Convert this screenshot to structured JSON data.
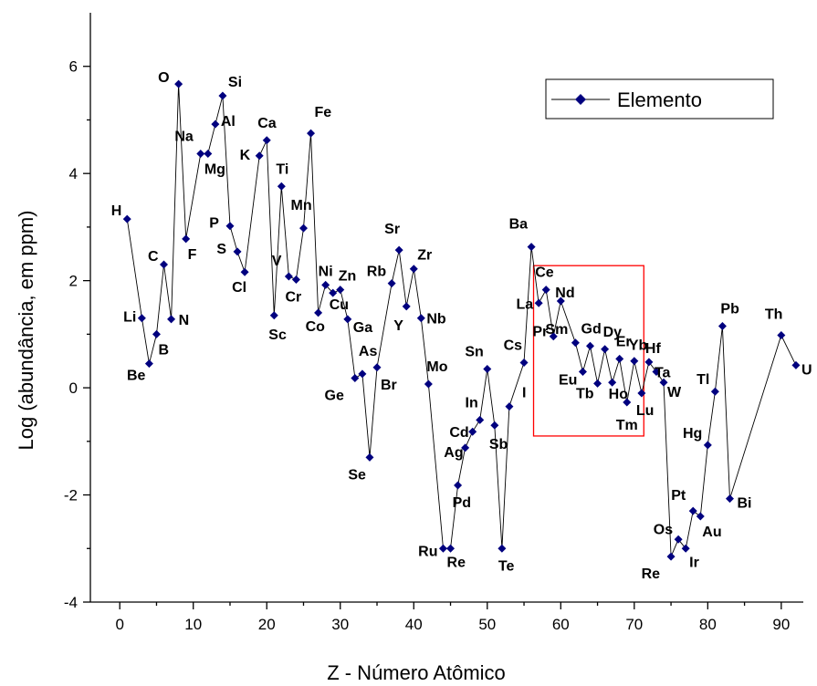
{
  "chart_data": {
    "type": "line",
    "xlabel": "Z - Número Atômico",
    "ylabel": "Log (abundância, em ppm)",
    "xlim": [
      -4,
      93
    ],
    "ylim": [
      -4,
      7
    ],
    "xticks": [
      0,
      10,
      20,
      30,
      40,
      50,
      60,
      70,
      80,
      90
    ],
    "yticks": [
      -4,
      -2,
      0,
      2,
      4,
      6
    ],
    "grid": false,
    "legend_position": "top-right",
    "colors": {
      "series": "#00007f",
      "highlight_box": "#ff0000"
    },
    "highlight_region": {
      "x": [
        56.3,
        71.3
      ],
      "y": [
        -0.9,
        2.28
      ]
    },
    "series": [
      {
        "name": "Elemento",
        "points": [
          {
            "z": 1,
            "y": 3.15,
            "label": "H"
          },
          {
            "z": 3,
            "y": 1.3,
            "label": "Li"
          },
          {
            "z": 4,
            "y": 0.45,
            "label": "Be"
          },
          {
            "z": 5,
            "y": 1.0,
            "label": "B"
          },
          {
            "z": 6,
            "y": 2.3,
            "label": "C"
          },
          {
            "z": 7,
            "y": 1.28,
            "label": "N"
          },
          {
            "z": 8,
            "y": 5.67,
            "label": "O"
          },
          {
            "z": 9,
            "y": 2.78,
            "label": "F"
          },
          {
            "z": 11,
            "y": 4.37,
            "label": "Na"
          },
          {
            "z": 12,
            "y": 4.37,
            "label": "Mg"
          },
          {
            "z": 13,
            "y": 4.92,
            "label": "Al"
          },
          {
            "z": 14,
            "y": 5.45,
            "label": "Si"
          },
          {
            "z": 15,
            "y": 3.02,
            "label": "P"
          },
          {
            "z": 16,
            "y": 2.54,
            "label": "S"
          },
          {
            "z": 17,
            "y": 2.16,
            "label": "Cl"
          },
          {
            "z": 19,
            "y": 4.33,
            "label": "K"
          },
          {
            "z": 20,
            "y": 4.62,
            "label": "Ca"
          },
          {
            "z": 21,
            "y": 1.35,
            "label": "Sc"
          },
          {
            "z": 22,
            "y": 3.76,
            "label": "Ti"
          },
          {
            "z": 23,
            "y": 2.08,
            "label": "V"
          },
          {
            "z": 24,
            "y": 2.02,
            "label": "Cr"
          },
          {
            "z": 25,
            "y": 2.98,
            "label": "Mn"
          },
          {
            "z": 26,
            "y": 4.75,
            "label": "Fe"
          },
          {
            "z": 27,
            "y": 1.4,
            "label": "Co"
          },
          {
            "z": 28,
            "y": 1.92,
            "label": "Ni"
          },
          {
            "z": 29,
            "y": 1.77,
            "label": "Cu"
          },
          {
            "z": 30,
            "y": 1.83,
            "label": "Zn"
          },
          {
            "z": 31,
            "y": 1.28,
            "label": "Ga"
          },
          {
            "z": 32,
            "y": 0.18,
            "label": "Ge"
          },
          {
            "z": 33,
            "y": 0.26,
            "label": "As"
          },
          {
            "z": 34,
            "y": -1.3,
            "label": "Se"
          },
          {
            "z": 35,
            "y": 0.38,
            "label": "Br"
          },
          {
            "z": 37,
            "y": 1.95,
            "label": "Rb"
          },
          {
            "z": 38,
            "y": 2.57,
            "label": "Sr"
          },
          {
            "z": 39,
            "y": 1.52,
            "label": "Y"
          },
          {
            "z": 40,
            "y": 2.22,
            "label": "Zr"
          },
          {
            "z": 41,
            "y": 1.3,
            "label": "Nb"
          },
          {
            "z": 42,
            "y": 0.07,
            "label": "Mo"
          },
          {
            "z": 44,
            "y": -3.0,
            "label": "Ru"
          },
          {
            "z": 45,
            "y": -3.0,
            "label": "Re"
          },
          {
            "z": 46,
            "y": -1.82,
            "label": "Pd"
          },
          {
            "z": 47,
            "y": -1.12,
            "label": "Ag"
          },
          {
            "z": 48,
            "y": -0.82,
            "label": "Cd"
          },
          {
            "z": 49,
            "y": -0.6,
            "label": "In"
          },
          {
            "z": 50,
            "y": 0.35,
            "label": "Sn"
          },
          {
            "z": 51,
            "y": -0.7,
            "label": "Sb"
          },
          {
            "z": 52,
            "y": -3.0,
            "label": "Te"
          },
          {
            "z": 53,
            "y": -0.35,
            "label": "I"
          },
          {
            "z": 55,
            "y": 0.47,
            "label": "Cs"
          },
          {
            "z": 56,
            "y": 2.63,
            "label": "Ba"
          },
          {
            "z": 57,
            "y": 1.58,
            "label": "La"
          },
          {
            "z": 58,
            "y": 1.83,
            "label": "Ce"
          },
          {
            "z": 59,
            "y": 0.96,
            "label": "Pr"
          },
          {
            "z": 60,
            "y": 1.62,
            "label": "Nd"
          },
          {
            "z": 62,
            "y": 0.84,
            "label": "Sm"
          },
          {
            "z": 63,
            "y": 0.3,
            "label": "Eu"
          },
          {
            "z": 64,
            "y": 0.78,
            "label": "Gd"
          },
          {
            "z": 65,
            "y": 0.08,
            "label": "Tb"
          },
          {
            "z": 66,
            "y": 0.72,
            "label": "Dy"
          },
          {
            "z": 67,
            "y": 0.1,
            "label": "Ho"
          },
          {
            "z": 68,
            "y": 0.54,
            "label": "Er"
          },
          {
            "z": 69,
            "y": -0.27,
            "label": "Tm"
          },
          {
            "z": 70,
            "y": 0.5,
            "label": "Yb"
          },
          {
            "z": 71,
            "y": -0.1,
            "label": "Lu"
          },
          {
            "z": 72,
            "y": 0.48,
            "label": "Hf"
          },
          {
            "z": 73,
            "y": 0.3,
            "label": "Ta"
          },
          {
            "z": 74,
            "y": 0.1,
            "label": "W"
          },
          {
            "z": 75,
            "y": -3.15,
            "label": "Re"
          },
          {
            "z": 76,
            "y": -2.83,
            "label": "Os"
          },
          {
            "z": 77,
            "y": -3.0,
            "label": "Ir"
          },
          {
            "z": 78,
            "y": -2.3,
            "label": "Pt"
          },
          {
            "z": 79,
            "y": -2.4,
            "label": "Au"
          },
          {
            "z": 80,
            "y": -1.07,
            "label": "Hg"
          },
          {
            "z": 81,
            "y": -0.07,
            "label": "Tl"
          },
          {
            "z": 82,
            "y": 1.15,
            "label": "Pb"
          },
          {
            "z": 83,
            "y": -2.07,
            "label": "Bi"
          },
          {
            "z": 90,
            "y": 0.98,
            "label": "Th"
          },
          {
            "z": 92,
            "y": 0.42,
            "label": "U"
          }
        ]
      }
    ]
  }
}
